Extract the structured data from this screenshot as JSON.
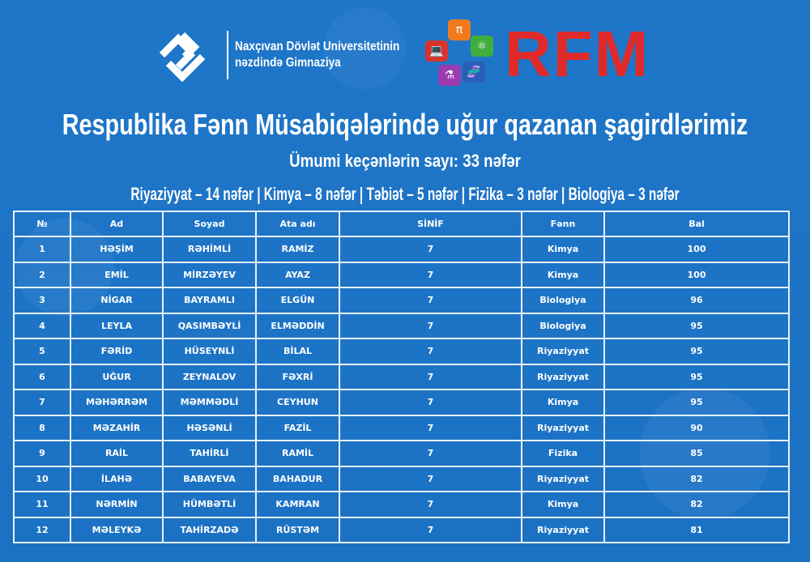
{
  "header": {
    "institution_line1": "Naxçıvan Dövlət Universitetinin",
    "institution_line2": "nəzdində Gimnaziya",
    "rfm_logo": "RFM",
    "accent_red": "#e02a2a",
    "background": "#1f76c8"
  },
  "title": "Respublika Fənn Müsabiqələrində uğur qazanan  şagirdlərimiz",
  "subtitle": "Ümumi keçənlərin sayı: 33 nəfər",
  "counts": "Riyaziyyat – 14 nəfər | Kimya – 8 nəfər | Təbiət – 5 nəfər | Fizika – 3 nəfər | Biologiya – 3 nəfər",
  "table": {
    "columns": [
      "№",
      "Ad",
      "Soyad",
      "Ata adı",
      "SİNİF",
      "Fənn",
      "Bal"
    ],
    "rows": [
      [
        "1",
        "HƏŞİM",
        "RƏHİMLİ",
        "RAMİZ",
        "7",
        "Kimya",
        "100"
      ],
      [
        "2",
        "EMİL",
        "MİRZƏYEV",
        "AYAZ",
        "7",
        "Kimya",
        "100"
      ],
      [
        "3",
        "NİGAR",
        "BAYRAMLI",
        "ELGÜN",
        "7",
        "Biologiya",
        "96"
      ],
      [
        "4",
        "LEYLA",
        "QASIMBƏYLİ",
        "ELMƏDDİN",
        "7",
        "Biologiya",
        "95"
      ],
      [
        "5",
        "FƏRİD",
        "HÜSEYNLİ",
        "BİLAL",
        "7",
        "Riyaziyyat",
        "95"
      ],
      [
        "6",
        "UĞUR",
        "ZEYNALOV",
        "FƏXRİ",
        "7",
        "Riyaziyyat",
        "95"
      ],
      [
        "7",
        "MƏHƏRRƏM",
        "MƏMMƏDLİ",
        "CEYHUN",
        "7",
        "Kimya",
        "95"
      ],
      [
        "8",
        "MƏZAHİR",
        "HƏSƏNLİ",
        "FAZİL",
        "7",
        "Riyaziyyat",
        "90"
      ],
      [
        "9",
        "RAİL",
        "TAHİRLİ",
        "RAMİL",
        "7",
        "Fizika",
        "85"
      ],
      [
        "10",
        "İLAHƏ",
        "BABAYEVA",
        "BAHADUR",
        "7",
        "Riyaziyyat",
        "82"
      ],
      [
        "11",
        "NƏRMİN",
        "HÜMBƏTLİ",
        "KAMRAN",
        "7",
        "Kimya",
        "82"
      ],
      [
        "12",
        "MƏLEYKƏ",
        "TAHİRZADƏ",
        "RÜSTƏM",
        "7",
        "Riyaziyyat",
        "81"
      ]
    ]
  }
}
